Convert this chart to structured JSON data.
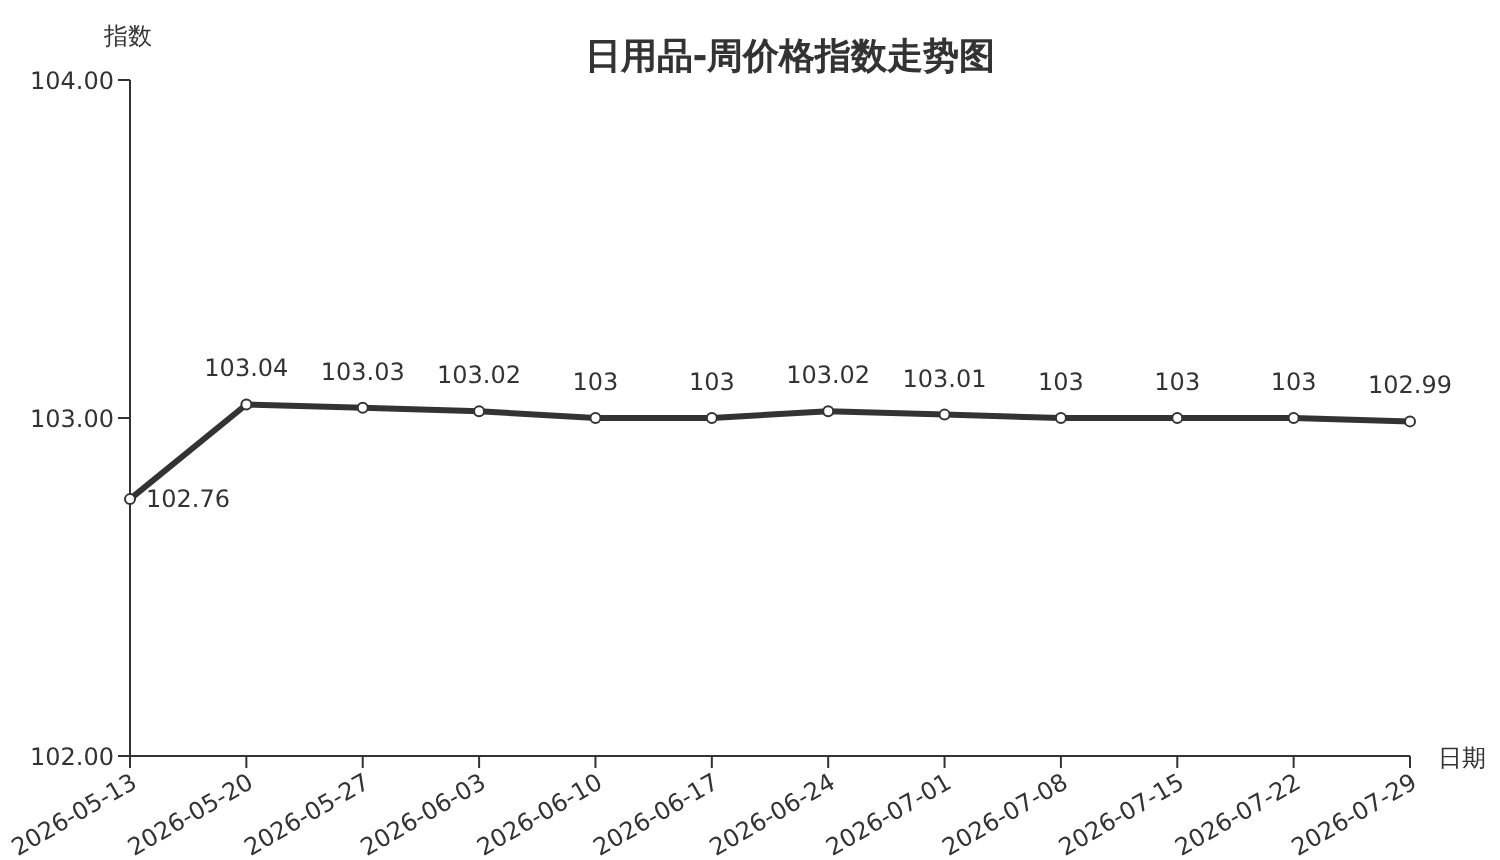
{
  "chart_data": {
    "type": "line",
    "title": "日用品-周价格指数走势图",
    "xlabel": "日期",
    "ylabel": "指数",
    "categories": [
      "2026-05-13",
      "2026-05-20",
      "2026-05-27",
      "2026-06-03",
      "2026-06-10",
      "2026-06-17",
      "2026-06-24",
      "2026-07-01",
      "2026-07-08",
      "2026-07-15",
      "2026-07-22",
      "2026-07-29"
    ],
    "series": [
      {
        "color": "#333333",
        "values": [
          102.76,
          103.04,
          103.03,
          103.02,
          103,
          103,
          103.02,
          103.01,
          103,
          103,
          103,
          102.99
        ]
      }
    ],
    "ylim": [
      102,
      104
    ],
    "yticks": [
      {
        "value": 102,
        "label": "102.00"
      },
      {
        "value": 103,
        "label": "103.00"
      },
      {
        "value": 104,
        "label": "104.00"
      }
    ],
    "data_labels": true,
    "marker": "circle"
  }
}
